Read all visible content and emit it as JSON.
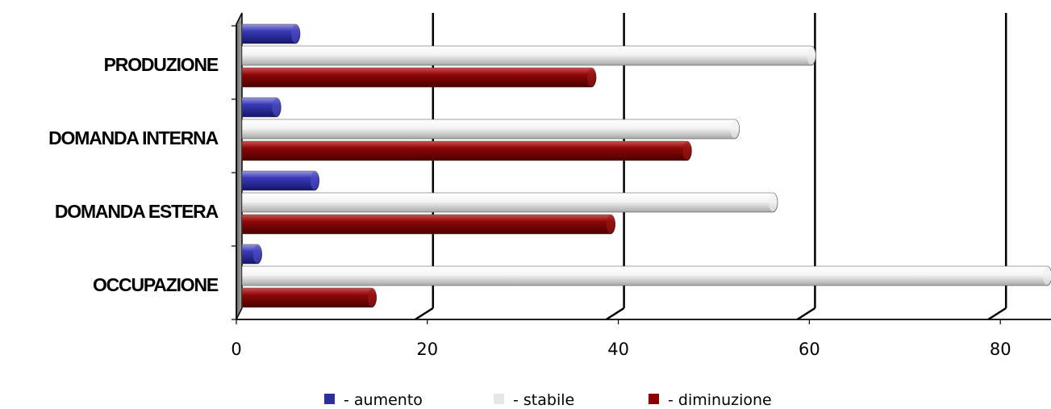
{
  "chart_data": {
    "type": "bar",
    "orientation": "horizontal",
    "categories": [
      "PRODUZIONE",
      "DOMANDA INTERNA",
      "DOMANDA ESTERA",
      "OCCUPAZIONE"
    ],
    "series": [
      {
        "name": "- aumento",
        "values": [
          6,
          4,
          8,
          2
        ],
        "color": "#2e2e9e"
      },
      {
        "name": "- stabile",
        "values": [
          60,
          52,
          56,
          86
        ],
        "color": "#e6e6e6"
      },
      {
        "name": "- diminuzione",
        "values": [
          37,
          47,
          39,
          14
        ],
        "color": "#8b0000"
      }
    ],
    "x_ticks": [
      0,
      20,
      40,
      60,
      80
    ],
    "xlim": [
      0,
      85
    ],
    "grid": true,
    "legend_position": "bottom",
    "title": "",
    "xlabel": "",
    "ylabel": ""
  }
}
